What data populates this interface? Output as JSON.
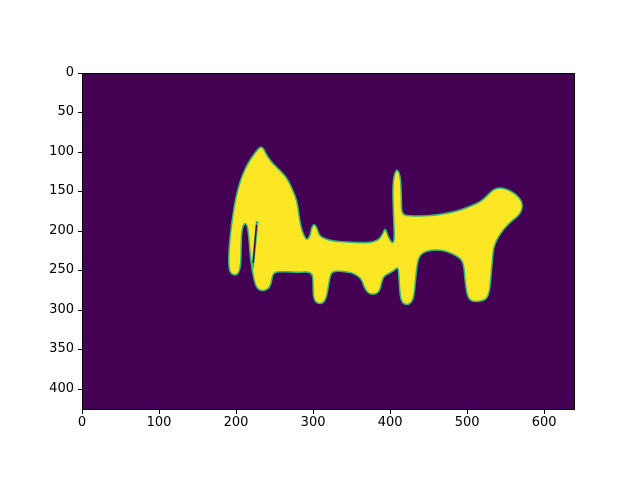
{
  "figure": {
    "background": "#ffffff",
    "style": "matplotlib imshow figure"
  },
  "chart_data": {
    "type": "heatmap",
    "subtype": "binary-segmentation-mask",
    "title": "",
    "xlabel": "",
    "ylabel": "",
    "x_ticks": [
      0,
      100,
      200,
      300,
      400,
      500,
      600
    ],
    "y_ticks": [
      0,
      50,
      100,
      150,
      200,
      250,
      300,
      350,
      400
    ],
    "x_range": [
      0,
      640
    ],
    "y_range": [
      0,
      427
    ],
    "y_inverted": true,
    "grid": false,
    "legend": null,
    "colormap": "viridis",
    "colors": {
      "background": "#440154",
      "mask": "#fde725",
      "edge": "#35b779",
      "spine": "#000000",
      "tick_label": "#000000"
    },
    "mask_description": "Yellow silhouette of two dog-like animals standing side by side: left dog with pointed upright ear and split front legs, a connecting low body bridge with a small head bump and dangling legs, right dog with raised vertical tail, downward-pointing snout and front/hind legs; lowest feet reach y≈295, topmost ear tip y≈93.",
    "mask_outline": [
      [
        235,
        94
      ],
      [
        239,
        103
      ],
      [
        247,
        114
      ],
      [
        257,
        123
      ],
      [
        266,
        133
      ],
      [
        273,
        147
      ],
      [
        279,
        162
      ],
      [
        281,
        177
      ],
      [
        284,
        195
      ],
      [
        288,
        206
      ],
      [
        292,
        212
      ],
      [
        296,
        206
      ],
      [
        298,
        196
      ],
      [
        301,
        191
      ],
      [
        305,
        196
      ],
      [
        308,
        206
      ],
      [
        315,
        210
      ],
      [
        326,
        213
      ],
      [
        341,
        214
      ],
      [
        359,
        215
      ],
      [
        375,
        215
      ],
      [
        386,
        211
      ],
      [
        391,
        203
      ],
      [
        394,
        196
      ],
      [
        398,
        208
      ],
      [
        403,
        216
      ],
      [
        406,
        212
      ],
      [
        405,
        186
      ],
      [
        404,
        160
      ],
      [
        404,
        140
      ],
      [
        406,
        127
      ],
      [
        409,
        122
      ],
      [
        412,
        125
      ],
      [
        414,
        135
      ],
      [
        415,
        155
      ],
      [
        415,
        174
      ],
      [
        418,
        180
      ],
      [
        428,
        181
      ],
      [
        443,
        181
      ],
      [
        458,
        180
      ],
      [
        472,
        178
      ],
      [
        491,
        174
      ],
      [
        506,
        168
      ],
      [
        518,
        163
      ],
      [
        527,
        155
      ],
      [
        534,
        148
      ],
      [
        541,
        145
      ],
      [
        550,
        146
      ],
      [
        559,
        150
      ],
      [
        566,
        155
      ],
      [
        571,
        161
      ],
      [
        573,
        168
      ],
      [
        571,
        176
      ],
      [
        566,
        182
      ],
      [
        558,
        188
      ],
      [
        550,
        196
      ],
      [
        543,
        205
      ],
      [
        538,
        214
      ],
      [
        535,
        223
      ],
      [
        534,
        233
      ],
      [
        532,
        255
      ],
      [
        530,
        277
      ],
      [
        526,
        287
      ],
      [
        517,
        290
      ],
      [
        507,
        290
      ],
      [
        501,
        284
      ],
      [
        498,
        264
      ],
      [
        496,
        239
      ],
      [
        486,
        231
      ],
      [
        471,
        225
      ],
      [
        456,
        224
      ],
      [
        444,
        227
      ],
      [
        437,
        234
      ],
      [
        434,
        255
      ],
      [
        432,
        279
      ],
      [
        429,
        291
      ],
      [
        421,
        295
      ],
      [
        414,
        289
      ],
      [
        412,
        264
      ],
      [
        411,
        245
      ],
      [
        405,
        251
      ],
      [
        397,
        255
      ],
      [
        392,
        258
      ],
      [
        389,
        266
      ],
      [
        387,
        276
      ],
      [
        381,
        281
      ],
      [
        372,
        280
      ],
      [
        366,
        271
      ],
      [
        363,
        261
      ],
      [
        353,
        254
      ],
      [
        342,
        252
      ],
      [
        331,
        251
      ],
      [
        323,
        253
      ],
      [
        320,
        270
      ],
      [
        317,
        286
      ],
      [
        312,
        293
      ],
      [
        304,
        292
      ],
      [
        300,
        284
      ],
      [
        300,
        266
      ],
      [
        299,
        254
      ],
      [
        290,
        252
      ],
      [
        282,
        253
      ],
      [
        267,
        252
      ],
      [
        254,
        252
      ],
      [
        248,
        254
      ],
      [
        246,
        262
      ],
      [
        244,
        271
      ],
      [
        238,
        276
      ],
      [
        230,
        276
      ],
      [
        225,
        270
      ],
      [
        222,
        258
      ],
      [
        220,
        246
      ],
      [
        218,
        232
      ],
      [
        216,
        206
      ],
      [
        214,
        192
      ],
      [
        210,
        190
      ],
      [
        207,
        199
      ],
      [
        206,
        220
      ],
      [
        206,
        238
      ],
      [
        204,
        252
      ],
      [
        199,
        257
      ],
      [
        192,
        254
      ],
      [
        190,
        245
      ],
      [
        190,
        228
      ],
      [
        192,
        205
      ],
      [
        195,
        182
      ],
      [
        199,
        158
      ],
      [
        205,
        136
      ],
      [
        212,
        119
      ],
      [
        220,
        106
      ],
      [
        227,
        97
      ],
      [
        231,
        93
      ]
    ],
    "inner_crease": {
      "edge_line": {
        "from": [
          227,
          189
        ],
        "to": [
          221,
          247
        ]
      },
      "core_line": {
        "from": [
          226,
          193
        ],
        "to": [
          222,
          240
        ]
      }
    }
  }
}
